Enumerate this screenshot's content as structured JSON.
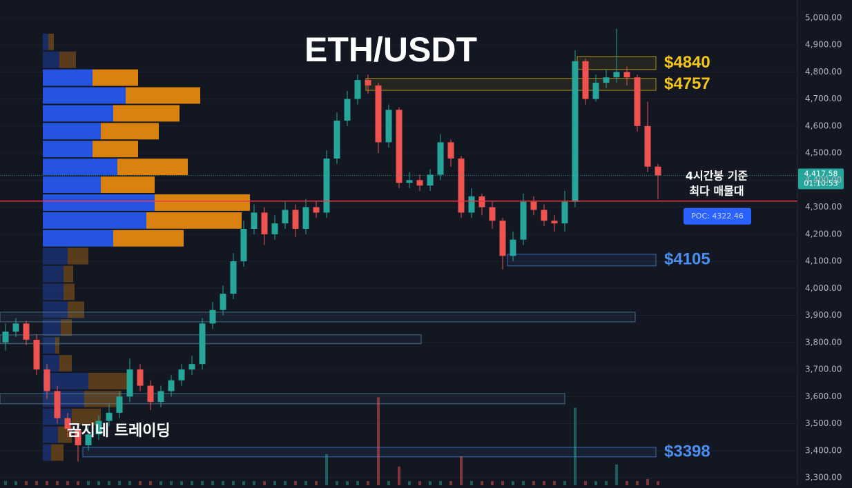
{
  "chart_data": {
    "type": "candlestick",
    "title": "ETH/USDT",
    "watermark": "곰지네 트레이딩",
    "annotation": [
      "4시간봉 기준",
      "최다 매물대"
    ],
    "ylim": [
      3272,
      5066
    ],
    "yticks": [
      {
        "value": 3300,
        "label": "3,300.00"
      },
      {
        "value": 3400,
        "label": "3,400.00"
      },
      {
        "value": 3500,
        "label": "3,500.00"
      },
      {
        "value": 3600,
        "label": "3,600.00"
      },
      {
        "value": 3700,
        "label": "3,700.00"
      },
      {
        "value": 3800,
        "label": "3,800.00"
      },
      {
        "value": 3900,
        "label": "3,900.00"
      },
      {
        "value": 4000,
        "label": "4,000.00"
      },
      {
        "value": 4100,
        "label": "4,100.00"
      },
      {
        "value": 4200,
        "label": "4,200.00"
      },
      {
        "value": 4300,
        "label": "4,300.00"
      },
      {
        "value": 4400,
        "label": "4,400.00"
      },
      {
        "value": 4500,
        "label": "4,500.00"
      },
      {
        "value": 4600,
        "label": "4,600.00"
      },
      {
        "value": 4700,
        "label": "4,700.00"
      },
      {
        "value": 4800,
        "label": "4,800.00"
      },
      {
        "value": 4900,
        "label": "4,900.00"
      },
      {
        "value": 5000,
        "label": "5,000.00"
      }
    ],
    "grid": true,
    "colors": {
      "up": "#26a69a",
      "down": "#ef5350"
    },
    "candles": {
      "open": [
        3800,
        3840,
        3870,
        3810,
        3700,
        3620,
        3520,
        3480,
        3420,
        3460,
        3510,
        3540,
        3600,
        3700,
        3640,
        3580,
        3620,
        3660,
        3700,
        3720,
        3870,
        3920,
        3980,
        4100,
        4220,
        4280,
        4200,
        4240,
        4290,
        4220,
        4300,
        4280,
        4480,
        4620,
        4700,
        4770,
        4750,
        4540,
        4660,
        4390,
        4400,
        4380,
        4420,
        4540,
        4480,
        4280,
        4340,
        4300,
        4250,
        4120,
        4180,
        4320,
        4290,
        4250,
        4240,
        4320,
        4840,
        4700,
        4760,
        4780,
        4800,
        4780,
        4600,
        4450
      ],
      "high": [
        3870,
        3890,
        3880,
        3830,
        3720,
        3640,
        3540,
        3500,
        3490,
        3530,
        3570,
        3620,
        3740,
        3720,
        3660,
        3640,
        3680,
        3720,
        3750,
        3890,
        3950,
        4010,
        4130,
        4250,
        4310,
        4300,
        4270,
        4320,
        4310,
        4330,
        4320,
        4510,
        4650,
        4730,
        4790,
        4790,
        4760,
        4680,
        4670,
        4430,
        4420,
        4440,
        4570,
        4550,
        4490,
        4370,
        4350,
        4320,
        4260,
        4210,
        4350,
        4340,
        4310,
        4270,
        4360,
        4880,
        4850,
        4790,
        4810,
        4960,
        4820,
        4790,
        4690,
        4460
      ],
      "low": [
        3770,
        3820,
        3790,
        3680,
        3590,
        3500,
        3450,
        3360,
        3400,
        3440,
        3490,
        3520,
        3580,
        3620,
        3550,
        3560,
        3600,
        3640,
        3680,
        3700,
        3850,
        3900,
        3960,
        4080,
        4200,
        4160,
        4180,
        4220,
        4190,
        4200,
        4260,
        4260,
        4460,
        4600,
        4680,
        4720,
        4500,
        4520,
        4370,
        4370,
        4360,
        4360,
        4400,
        4450,
        4260,
        4260,
        4270,
        4220,
        4070,
        4100,
        4160,
        4270,
        4230,
        4210,
        4210,
        4300,
        4680,
        4690,
        4740,
        4760,
        4750,
        4580,
        4430,
        4330
      ],
      "close": [
        3840,
        3870,
        3810,
        3700,
        3620,
        3520,
        3480,
        3420,
        3460,
        3510,
        3540,
        3600,
        3700,
        3640,
        3580,
        3620,
        3660,
        3700,
        3720,
        3870,
        3920,
        3980,
        4100,
        4220,
        4280,
        4200,
        4240,
        4290,
        4220,
        4300,
        4280,
        4480,
        4620,
        4700,
        4770,
        4750,
        4540,
        4660,
        4390,
        4400,
        4380,
        4420,
        4540,
        4480,
        4280,
        4340,
        4300,
        4250,
        4120,
        4180,
        4320,
        4290,
        4250,
        4240,
        4320,
        4840,
        4700,
        4760,
        4780,
        4800,
        4780,
        4600,
        4450,
        4417.58
      ]
    },
    "volume": [
      4,
      4,
      4,
      4,
      4,
      4,
      4,
      4,
      4,
      4,
      4,
      4,
      4,
      4,
      4,
      4,
      4,
      4,
      4,
      4,
      4,
      4,
      4,
      4,
      4,
      4,
      4,
      4,
      4,
      4,
      4,
      30,
      4,
      4,
      4,
      4,
      85,
      4,
      18,
      4,
      4,
      4,
      4,
      4,
      28,
      4,
      4,
      4,
      4,
      4,
      4,
      4,
      4,
      4,
      4,
      75,
      4,
      4,
      4,
      20,
      4,
      4,
      6,
      4
    ],
    "volume_profile": {
      "bins": [
        3360,
        3426,
        3492,
        3558,
        3624,
        3690,
        3756,
        3822,
        3888,
        3954,
        4020,
        4086,
        4152,
        4218,
        4284,
        4350,
        4416,
        4482,
        4548,
        4614,
        4680,
        4746,
        4812,
        4878,
        4944
      ],
      "buy": [
        12,
        22,
        42,
        60,
        66,
        24,
        18,
        26,
        36,
        30,
        30,
        36,
        102,
        150,
        162,
        84,
        108,
        72,
        84,
        102,
        120,
        72,
        24,
        8
      ],
      "sell": [
        18,
        20,
        42,
        54,
        60,
        18,
        6,
        16,
        24,
        16,
        14,
        30,
        102,
        138,
        138,
        78,
        102,
        66,
        84,
        96,
        108,
        66,
        24,
        8
      ],
      "value_area": [
        4152,
        4812
      ],
      "buy_color": "#2454e0",
      "sell_color": "#d9820f"
    },
    "poc": {
      "value": 4322.46,
      "label": "POC: 4322.46",
      "color": "#f23645"
    },
    "last_price": {
      "value": 4417.58,
      "label": "4,417.58",
      "countdown": "01:10:53"
    },
    "zones": [
      {
        "label": "$4840",
        "low": 4809,
        "high": 4857,
        "color": "#f5c518"
      },
      {
        "label": "$4757",
        "low": 4732,
        "high": 4776,
        "color": "#f5c518"
      },
      {
        "label": "$4105",
        "low": 4083,
        "high": 4126,
        "color": "#4a8ff0"
      },
      {
        "low": 3876,
        "high": 3912,
        "color": "#5b8fb0"
      },
      {
        "low": 3795,
        "high": 3828,
        "color": "#5b8fb0"
      },
      {
        "low": 3573,
        "high": 3611,
        "color": "#5b8fb0"
      },
      {
        "label": "$3398",
        "low": 3377,
        "high": 3412,
        "color": "#4a8ff0"
      }
    ]
  }
}
